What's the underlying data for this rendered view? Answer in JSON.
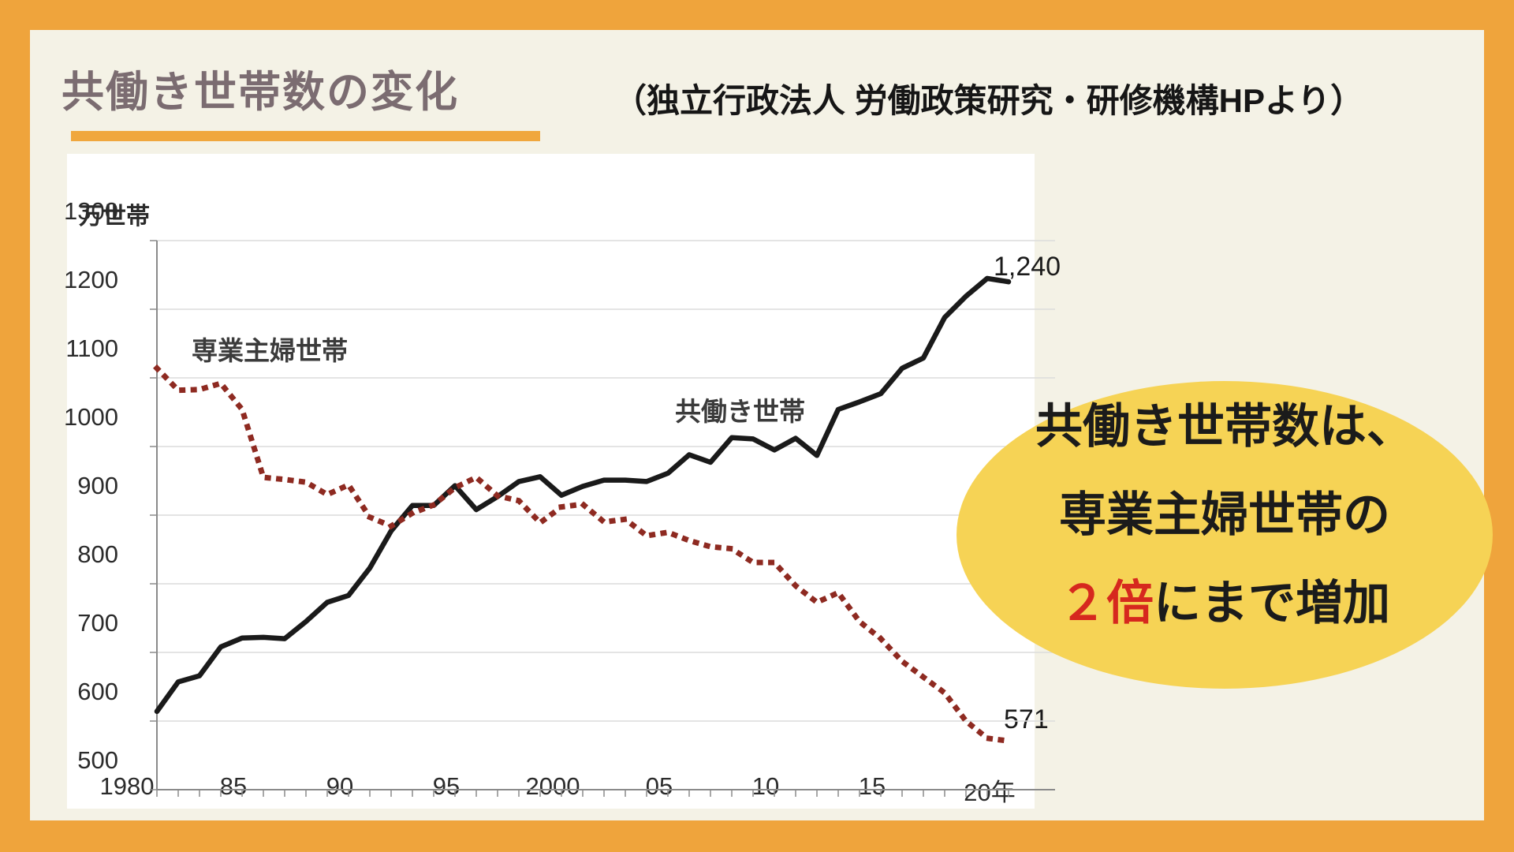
{
  "header": {
    "title": "共働き世帯数の変化",
    "source": "（独立行政法人 労働政策研究・研修機構HPより）"
  },
  "chart_data": {
    "type": "line",
    "unit_label": "万世帯",
    "x": [
      1980,
      1981,
      1982,
      1983,
      1984,
      1985,
      1986,
      1987,
      1988,
      1989,
      1990,
      1991,
      1992,
      1993,
      1994,
      1995,
      1996,
      1997,
      1998,
      1999,
      2000,
      2001,
      2002,
      2003,
      2004,
      2005,
      2006,
      2007,
      2008,
      2009,
      2010,
      2011,
      2012,
      2013,
      2014,
      2015,
      2016,
      2017,
      2018,
      2019,
      2020
    ],
    "series": [
      {
        "name": "共働き世帯",
        "style": "solid",
        "color": "#1a1a1a",
        "end_label": "1,240",
        "values": [
          614,
          657,
          666,
          708,
          721,
          722,
          720,
          745,
          773,
          783,
          823,
          877,
          914,
          914,
          943,
          908,
          927,
          949,
          956,
          929,
          942,
          951,
          951,
          949,
          961,
          988,
          977,
          1013,
          1011,
          995,
          1012,
          987,
          1054,
          1065,
          1077,
          1114,
          1129,
          1188,
          1219,
          1245,
          1240
        ]
      },
      {
        "name": "専業主婦世帯",
        "style": "dotted",
        "color": "#8E2A21",
        "end_label": "571",
        "values": [
          1114,
          1082,
          1083,
          1092,
          1054,
          955,
          952,
          948,
          930,
          944,
          897,
          884,
          903,
          915,
          940,
          955,
          928,
          921,
          889,
          912,
          916,
          890,
          894,
          870,
          875,
          863,
          854,
          851,
          831,
          831,
          797,
          773,
          787,
          745,
          720,
          687,
          664,
          641,
          600,
          575,
          571
        ]
      }
    ],
    "ylim": [
      500,
      1300
    ],
    "y_ticks": [
      1300,
      1200,
      1100,
      1000,
      900,
      800,
      700,
      600,
      500
    ],
    "x_tick_years": [
      1980,
      1985,
      1990,
      1995,
      2000,
      2005,
      2010,
      2015,
      2020
    ],
    "x_tick_labels": [
      "1980",
      "85",
      "90",
      "95",
      "2000",
      "05",
      "10",
      "15",
      "20年"
    ],
    "grid": "horizontal",
    "legend_position": "inline-labels"
  },
  "callout": {
    "line1": "共働き世帯数は、",
    "line2": "専業主婦世帯の",
    "line3_red": "２倍",
    "line3_rest": "にまで増加",
    "bg_color": "#F6D355",
    "accent_color": "#D6281E"
  },
  "colors": {
    "frame": "#EFA43C",
    "background": "#F4F2E6",
    "title": "#7B6C71",
    "underline": "#F0A73E",
    "panel": "#FFFFFF",
    "gridline": "#DCDCDC",
    "axis": "#8a8a8a"
  }
}
